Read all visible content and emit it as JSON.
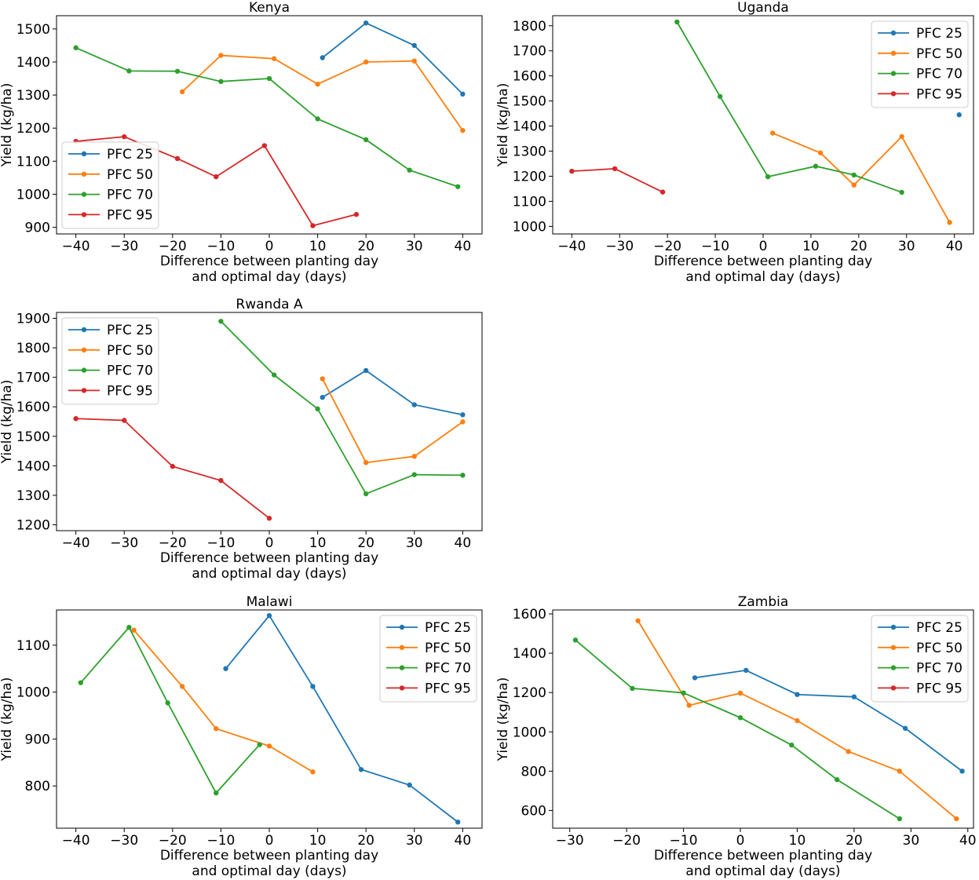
{
  "chart_data": [
    {
      "type": "line",
      "title": "Kenya",
      "xlabel": "Difference between planting day\nand optimal day (days)",
      "ylabel": "Yield (kg/ha)",
      "xlim": [
        -44,
        44
      ],
      "ylim": [
        880,
        1540
      ],
      "xticks": [
        -40,
        -30,
        -20,
        -10,
        0,
        10,
        20,
        30,
        40
      ],
      "yticks": [
        900,
        1000,
        1100,
        1200,
        1300,
        1400,
        1500
      ],
      "legend": "bottom-left",
      "series": [
        {
          "name": "PFC 25",
          "color": "#1f77b4",
          "x": [
            11,
            20,
            30,
            40
          ],
          "y": [
            1413,
            1518,
            1450,
            1303
          ]
        },
        {
          "name": "PFC 50",
          "color": "#ff7f0e",
          "x": [
            -18,
            -10,
            1,
            10,
            20,
            30,
            40
          ],
          "y": [
            1310,
            1420,
            1410,
            1333,
            1400,
            1403,
            1193
          ]
        },
        {
          "name": "PFC 70",
          "color": "#2ca02c",
          "x": [
            -40,
            -29,
            -19,
            -10,
            0,
            10,
            20,
            29,
            39
          ],
          "y": [
            1443,
            1373,
            1372,
            1341,
            1350,
            1228,
            1165,
            1073,
            1023
          ]
        },
        {
          "name": "PFC 95",
          "color": "#d62728",
          "x": [
            -40,
            -30,
            -19,
            -11,
            -1,
            9,
            18
          ],
          "y": [
            1160,
            1174,
            1108,
            1053,
            1147,
            905,
            939
          ]
        }
      ]
    },
    {
      "type": "line",
      "title": "Uganda",
      "xlabel": "Difference between planting day\nand optimal day (days)",
      "ylabel": "Yield (kg/ha)",
      "xlim": [
        -44,
        44
      ],
      "ylim": [
        970,
        1840
      ],
      "xticks": [
        -40,
        -30,
        -20,
        -10,
        0,
        10,
        20,
        30,
        40
      ],
      "yticks": [
        1000,
        1100,
        1200,
        1300,
        1400,
        1500,
        1600,
        1700,
        1800
      ],
      "legend": "top-right",
      "series": [
        {
          "name": "PFC 25",
          "color": "#1f77b4",
          "x": [
            41
          ],
          "y": [
            1445
          ]
        },
        {
          "name": "PFC 50",
          "color": "#ff7f0e",
          "x": [
            2,
            12,
            19,
            29,
            39
          ],
          "y": [
            1372,
            1293,
            1165,
            1358,
            1016
          ]
        },
        {
          "name": "PFC 70",
          "color": "#2ca02c",
          "x": [
            -18,
            -9,
            1,
            11,
            19,
            29
          ],
          "y": [
            1815,
            1518,
            1198,
            1240,
            1205,
            1136
          ]
        },
        {
          "name": "PFC 95",
          "color": "#d62728",
          "x": [
            -40,
            -31,
            -21
          ],
          "y": [
            1220,
            1230,
            1137
          ]
        }
      ]
    },
    {
      "type": "line",
      "title": "Rwanda A",
      "xlabel": "Difference between planting day\nand optimal day (days)",
      "ylabel": "Yield (kg/ha)",
      "xlim": [
        -44,
        44
      ],
      "ylim": [
        1180,
        1920
      ],
      "xticks": [
        -40,
        -30,
        -20,
        -10,
        0,
        10,
        20,
        30,
        40
      ],
      "yticks": [
        1200,
        1300,
        1400,
        1500,
        1600,
        1700,
        1800,
        1900
      ],
      "legend": "top-left",
      "series": [
        {
          "name": "PFC 25",
          "color": "#1f77b4",
          "x": [
            11,
            20,
            30,
            40
          ],
          "y": [
            1632,
            1723,
            1607,
            1573
          ]
        },
        {
          "name": "PFC 50",
          "color": "#ff7f0e",
          "x": [
            11,
            20,
            30,
            40
          ],
          "y": [
            1695,
            1411,
            1432,
            1549
          ]
        },
        {
          "name": "PFC 70",
          "color": "#2ca02c",
          "x": [
            -10,
            1,
            10,
            20,
            30,
            40
          ],
          "y": [
            1890,
            1708,
            1593,
            1305,
            1370,
            1368
          ]
        },
        {
          "name": "PFC 95",
          "color": "#d62728",
          "x": [
            -40,
            -30,
            -20,
            -10,
            0
          ],
          "y": [
            1560,
            1554,
            1398,
            1350,
            1222
          ]
        }
      ]
    },
    {
      "type": "line",
      "title": "Malawi",
      "xlabel": "Difference between planting day\nand optimal day (days)",
      "ylabel": "Yield (kg/ha)",
      "xlim": [
        -44,
        44
      ],
      "ylim": [
        710,
        1175
      ],
      "xticks": [
        -40,
        -30,
        -20,
        -10,
        0,
        10,
        20,
        30,
        40
      ],
      "yticks": [
        800,
        900,
        1000,
        1100
      ],
      "legend": "top-right",
      "series": [
        {
          "name": "PFC 25",
          "color": "#1f77b4",
          "x": [
            -9,
            0,
            9,
            19,
            29,
            39
          ],
          "y": [
            1050,
            1163,
            1012,
            835,
            802,
            723
          ]
        },
        {
          "name": "PFC 50",
          "color": "#ff7f0e",
          "x": [
            -28,
            -18,
            -11,
            0,
            9
          ],
          "y": [
            1132,
            1012,
            922,
            885,
            830
          ]
        },
        {
          "name": "PFC 70",
          "color": "#2ca02c",
          "x": [
            -39,
            -29,
            -21,
            -11,
            -2
          ],
          "y": [
            1020,
            1138,
            977,
            785,
            888
          ]
        },
        {
          "name": "PFC 95",
          "color": "#d62728",
          "x": [],
          "y": []
        }
      ]
    },
    {
      "type": "line",
      "title": "Zambia",
      "xlabel": "Difference between planting day\nand optimal day (days)",
      "ylabel": "Yield (kg/ha)",
      "xlim": [
        -33,
        41
      ],
      "ylim": [
        510,
        1620
      ],
      "xticks": [
        -30,
        -20,
        -10,
        0,
        10,
        20,
        30,
        40
      ],
      "yticks": [
        600,
        800,
        1000,
        1200,
        1400,
        1600
      ],
      "legend": "top-right",
      "series": [
        {
          "name": "PFC 25",
          "color": "#1f77b4",
          "x": [
            -8,
            1,
            10,
            20,
            29,
            39
          ],
          "y": [
            1275,
            1313,
            1190,
            1178,
            1018,
            800
          ]
        },
        {
          "name": "PFC 50",
          "color": "#ff7f0e",
          "x": [
            -18,
            -9,
            0,
            10,
            19,
            28,
            38
          ],
          "y": [
            1565,
            1135,
            1197,
            1057,
            900,
            800,
            558
          ]
        },
        {
          "name": "PFC 70",
          "color": "#2ca02c",
          "x": [
            -29,
            -19,
            -10,
            0,
            9,
            17,
            28
          ],
          "y": [
            1467,
            1221,
            1198,
            1072,
            933,
            757,
            558
          ]
        },
        {
          "name": "PFC 95",
          "color": "#d62728",
          "x": [],
          "y": []
        }
      ]
    }
  ]
}
